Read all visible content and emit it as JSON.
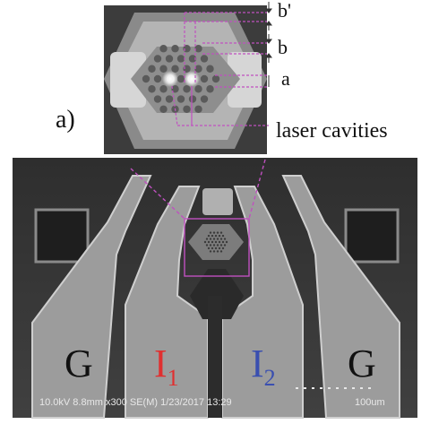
{
  "panel_label": "a)",
  "inset": {
    "dim_labels": {
      "b_prime": "b'",
      "b": "b",
      "a": "a"
    },
    "callout": "laser cavities"
  },
  "sem": {
    "pads": [
      {
        "letter": "G",
        "subscript": "",
        "color": "#111111"
      },
      {
        "letter": "I",
        "subscript": "1",
        "color": "#e03030"
      },
      {
        "letter": "I",
        "subscript": "2",
        "color": "#3a4fb0"
      },
      {
        "letter": "G",
        "subscript": "",
        "color": "#111111"
      }
    ],
    "info_bar": "10.0kV 8.8mm x300 SE(M) 1/23/2017 13:29",
    "scale_label": "100um"
  },
  "colors": {
    "annotation_magenta": "#c050c0",
    "sem_background": "#3a3a3a",
    "pad_fill": "#9c9c9c"
  }
}
